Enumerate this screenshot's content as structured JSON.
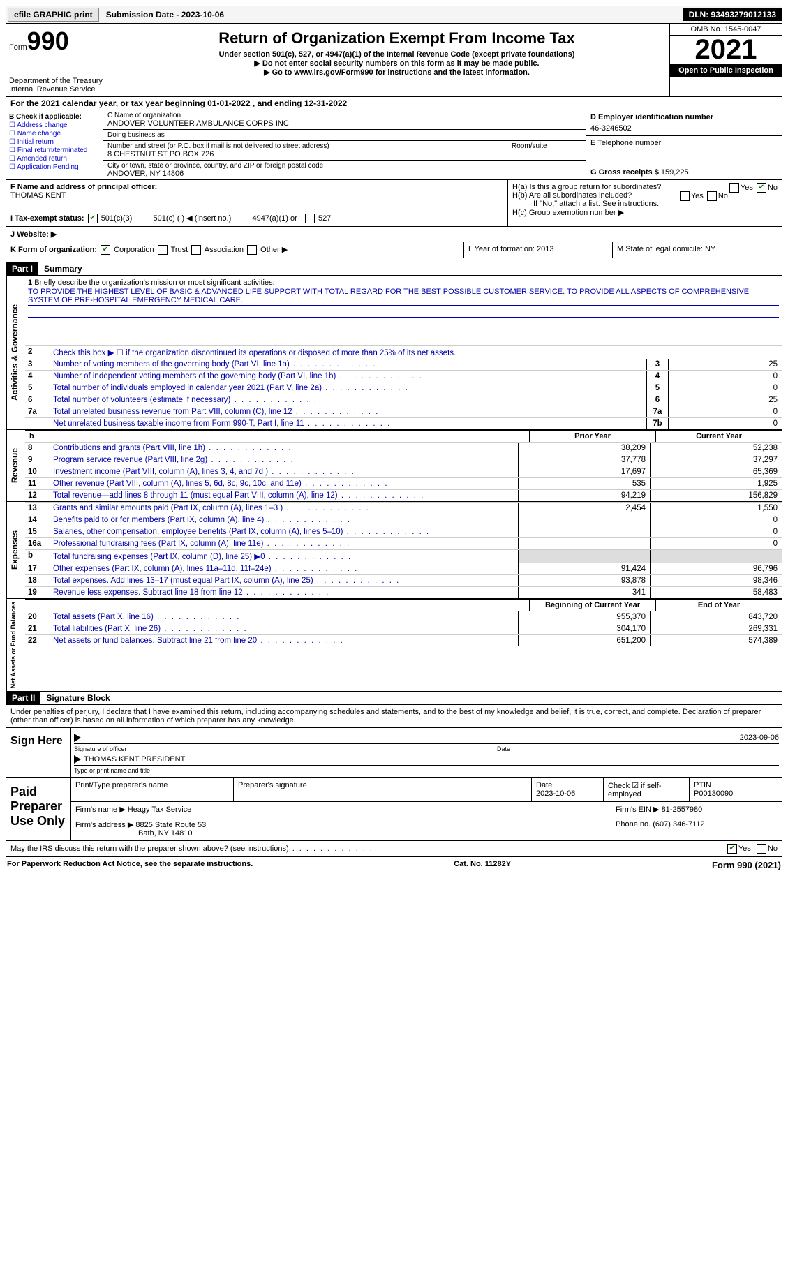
{
  "topbar": {
    "efile": "efile GRAPHIC print",
    "submission": "Submission Date - 2023-10-06",
    "dln": "DLN: 93493279012133"
  },
  "header": {
    "form_prefix": "Form",
    "form_number": "990",
    "title": "Return of Organization Exempt From Income Tax",
    "subtitle1": "Under section 501(c), 527, or 4947(a)(1) of the Internal Revenue Code (except private foundations)",
    "subtitle2": "▶ Do not enter social security numbers on this form as it may be made public.",
    "subtitle3": "▶ Go to www.irs.gov/Form990 for instructions and the latest information.",
    "dept": "Department of the Treasury\nInternal Revenue Service",
    "omb": "OMB No. 1545-0047",
    "year": "2021",
    "inspection": "Open to Public Inspection"
  },
  "A": "For the 2021 calendar year, or tax year beginning 01-01-2022   , and ending 12-31-2022",
  "B": {
    "label": "B Check if applicable:",
    "opts": [
      "Address change",
      "Name change",
      "Initial return",
      "Final return/terminated",
      "Amended return",
      "Application Pending"
    ]
  },
  "C": {
    "name_lbl": "C Name of organization",
    "name": "ANDOVER VOLUNTEER AMBULANCE CORPS INC",
    "dba_lbl": "Doing business as",
    "dba": "",
    "addr_lbl": "Number and street (or P.O. box if mail is not delivered to street address)",
    "room_lbl": "Room/suite",
    "addr": "8 CHESTNUT ST PO BOX 726",
    "city_lbl": "City or town, state or province, country, and ZIP or foreign postal code",
    "city": "ANDOVER, NY  14806"
  },
  "D": {
    "lbl": "D Employer identification number",
    "val": "46-3246502"
  },
  "E": {
    "lbl": "E Telephone number",
    "val": ""
  },
  "G": {
    "lbl": "G Gross receipts $",
    "val": "159,225"
  },
  "F": {
    "lbl": "F  Name and address of principal officer:",
    "val": "THOMAS KENT"
  },
  "H": {
    "a": "H(a)  Is this a group return for subordinates?",
    "b": "H(b)  Are all subordinates included?",
    "note": "If \"No,\" attach a list. See instructions.",
    "c": "H(c)  Group exemption number ▶"
  },
  "I": {
    "lbl": "I   Tax-exempt status:",
    "opts": [
      "501(c)(3)",
      "501(c) (  ) ◀ (insert no.)",
      "4947(a)(1) or",
      "527"
    ]
  },
  "J": "J   Website: ▶",
  "K": {
    "lbl": "K Form of organization:",
    "opts": [
      "Corporation",
      "Trust",
      "Association",
      "Other ▶"
    ]
  },
  "L": "L Year of formation: 2013",
  "M": "M State of legal domicile: NY",
  "parts": {
    "p1": "Part I",
    "p1_title": "Summary",
    "p2": "Part II",
    "p2_title": "Signature Block"
  },
  "summary": {
    "line1_lbl": "Briefly describe the organization's mission or most significant activities:",
    "mission": "TO PROVIDE THE HIGHEST LEVEL OF BASIC & ADVANCED LIFE SUPPORT WITH TOTAL REGARD FOR THE BEST POSSIBLE CUSTOMER SERVICE. TO PROVIDE ALL ASPECTS OF COMPREHENSIVE SYSTEM OF PRE-HOSPITAL EMERGENCY MEDICAL CARE.",
    "line2": "Check this box ▶ ☐ if the organization discontinued its operations or disposed of more than 25% of its net assets.",
    "lines": [
      {
        "n": "3",
        "d": "Number of voting members of the governing body (Part VI, line 1a)",
        "b": "3",
        "v": "25"
      },
      {
        "n": "4",
        "d": "Number of independent voting members of the governing body (Part VI, line 1b)",
        "b": "4",
        "v": "0"
      },
      {
        "n": "5",
        "d": "Total number of individuals employed in calendar year 2021 (Part V, line 2a)",
        "b": "5",
        "v": "0"
      },
      {
        "n": "6",
        "d": "Total number of volunteers (estimate if necessary)",
        "b": "6",
        "v": "25"
      },
      {
        "n": "7a",
        "d": "Total unrelated business revenue from Part VIII, column (C), line 12",
        "b": "7a",
        "v": "0"
      },
      {
        "n": "",
        "d": "Net unrelated business taxable income from Form 990-T, Part I, line 11",
        "b": "7b",
        "v": "0"
      }
    ],
    "col_hdr1": "Prior Year",
    "col_hdr2": "Current Year",
    "revenue": [
      {
        "n": "8",
        "d": "Contributions and grants (Part VIII, line 1h)",
        "v1": "38,209",
        "v2": "52,238"
      },
      {
        "n": "9",
        "d": "Program service revenue (Part VIII, line 2g)",
        "v1": "37,778",
        "v2": "37,297"
      },
      {
        "n": "10",
        "d": "Investment income (Part VIII, column (A), lines 3, 4, and 7d )",
        "v1": "17,697",
        "v2": "65,369"
      },
      {
        "n": "11",
        "d": "Other revenue (Part VIII, column (A), lines 5, 6d, 8c, 9c, 10c, and 11e)",
        "v1": "535",
        "v2": "1,925"
      },
      {
        "n": "12",
        "d": "Total revenue—add lines 8 through 11 (must equal Part VIII, column (A), line 12)",
        "v1": "94,219",
        "v2": "156,829"
      }
    ],
    "expenses": [
      {
        "n": "13",
        "d": "Grants and similar amounts paid (Part IX, column (A), lines 1–3 )",
        "v1": "2,454",
        "v2": "1,550"
      },
      {
        "n": "14",
        "d": "Benefits paid to or for members (Part IX, column (A), line 4)",
        "v1": "",
        "v2": "0"
      },
      {
        "n": "15",
        "d": "Salaries, other compensation, employee benefits (Part IX, column (A), lines 5–10)",
        "v1": "",
        "v2": "0"
      },
      {
        "n": "16a",
        "d": "Professional fundraising fees (Part IX, column (A), line 11e)",
        "v1": "",
        "v2": "0"
      },
      {
        "n": "b",
        "d": "Total fundraising expenses (Part IX, column (D), line 25) ▶0",
        "v1": "shade",
        "v2": "shade"
      },
      {
        "n": "17",
        "d": "Other expenses (Part IX, column (A), lines 11a–11d, 11f–24e)",
        "v1": "91,424",
        "v2": "96,796"
      },
      {
        "n": "18",
        "d": "Total expenses. Add lines 13–17 (must equal Part IX, column (A), line 25)",
        "v1": "93,878",
        "v2": "98,346"
      },
      {
        "n": "19",
        "d": "Revenue less expenses. Subtract line 18 from line 12",
        "v1": "341",
        "v2": "58,483"
      }
    ],
    "net_hdr1": "Beginning of Current Year",
    "net_hdr2": "End of Year",
    "net": [
      {
        "n": "20",
        "d": "Total assets (Part X, line 16)",
        "v1": "955,370",
        "v2": "843,720"
      },
      {
        "n": "21",
        "d": "Total liabilities (Part X, line 26)",
        "v1": "304,170",
        "v2": "269,331"
      },
      {
        "n": "22",
        "d": "Net assets or fund balances. Subtract line 21 from line 20",
        "v1": "651,200",
        "v2": "574,389"
      }
    ],
    "vert": {
      "gov": "Activities & Governance",
      "rev": "Revenue",
      "exp": "Expenses",
      "net": "Net Assets or Fund Balances"
    }
  },
  "sig": {
    "penalties": "Under penalties of perjury, I declare that I have examined this return, including accompanying schedules and statements, and to the best of my knowledge and belief, it is true, correct, and complete. Declaration of preparer (other than officer) is based on all information of which preparer has any knowledge.",
    "sign_here": "Sign Here",
    "sig_officer": "Signature of officer",
    "date_lbl": "Date",
    "date_val": "2023-09-06",
    "name_val": "THOMAS KENT  PRESIDENT",
    "name_lbl": "Type or print name and title",
    "paid": "Paid Preparer Use Only",
    "prep_name_lbl": "Print/Type preparer's name",
    "prep_sig_lbl": "Preparer's signature",
    "prep_date_lbl": "Date",
    "prep_date": "2023-10-06",
    "self_emp": "Check ☑ if self-employed",
    "ptin_lbl": "PTIN",
    "ptin": "P00130090",
    "firm_name_lbl": "Firm's name    ▶",
    "firm_name": "Heagy Tax Service",
    "firm_ein_lbl": "Firm's EIN ▶",
    "firm_ein": "81-2557980",
    "firm_addr_lbl": "Firm's address ▶",
    "firm_addr1": "8825 State Route 53",
    "firm_addr2": "Bath, NY  14810",
    "phone_lbl": "Phone no.",
    "phone": "(607) 346-7112",
    "discuss": "May the IRS discuss this return with the preparer shown above? (see instructions)"
  },
  "footer": {
    "pra": "For Paperwork Reduction Act Notice, see the separate instructions.",
    "cat": "Cat. No. 11282Y",
    "formno": "Form 990 (2021)"
  },
  "yn": {
    "yes": "Yes",
    "no": "No"
  }
}
